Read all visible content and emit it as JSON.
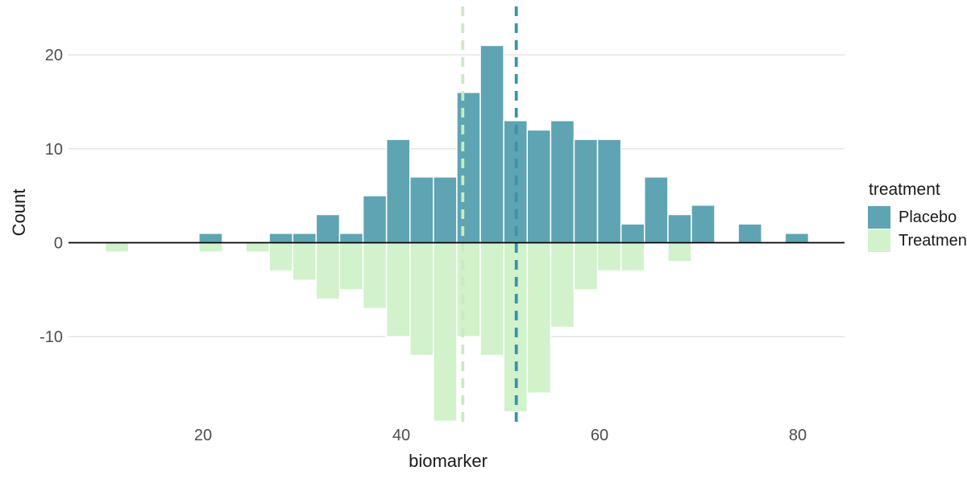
{
  "chart_data": {
    "type": "bar",
    "subtype": "mirrored-histogram",
    "title": "",
    "xlabel": "biomarker",
    "ylabel": "Count",
    "x": [
      11.3,
      13.6,
      16.0,
      18.4,
      20.8,
      23.1,
      25.5,
      27.9,
      30.2,
      32.6,
      35.0,
      37.3,
      39.7,
      42.1,
      44.4,
      46.8,
      49.2,
      51.5,
      53.9,
      56.3,
      58.6,
      61.0,
      63.4,
      65.7,
      68.1,
      70.5,
      72.8,
      75.2,
      77.6,
      79.9
    ],
    "binwidth": 2.37,
    "series": [
      {
        "name": "Placebo",
        "color": "#5FA4B2",
        "values": [
          0,
          0,
          0,
          0,
          1,
          0,
          0,
          1,
          1,
          3,
          1,
          5,
          11,
          7,
          7,
          16,
          21,
          13,
          12,
          13,
          11,
          11,
          2,
          7,
          3,
          4,
          0,
          2,
          0,
          1
        ]
      },
      {
        "name": "Treatment",
        "color": "#D1F2CB",
        "values": [
          -1,
          0,
          0,
          0,
          -1,
          0,
          -1,
          -3,
          -4,
          -6,
          -5,
          -7,
          -10,
          -12,
          -19,
          -10,
          -12,
          -18,
          -16,
          -9,
          -5,
          -3,
          -3,
          0,
          -2,
          0,
          0,
          0,
          0,
          0
        ]
      }
    ],
    "mean_lines": [
      {
        "series": "Treatment",
        "x": 46.2,
        "color": "#C6EDBF",
        "style": "dashed"
      },
      {
        "series": "Placebo",
        "x": 51.6,
        "color": "#3A93A9",
        "style": "dashed"
      }
    ],
    "x_ticks": [
      20,
      40,
      60,
      80
    ],
    "y_ticks": [
      20,
      10,
      0,
      -10
    ],
    "xlim": [
      6.5,
      84.8
    ],
    "ylim": [
      -20,
      25
    ],
    "grid": "horizontal-only",
    "bar_border_color": "#ffffff",
    "axis_line_color": "#000000",
    "tick_label_color": "#4d4d4d",
    "legend": {
      "title": "treatment",
      "position": "right",
      "items": [
        {
          "label": "Placebo",
          "color": "#5FA4B2"
        },
        {
          "label": "Treatment",
          "color": "#D1F2CB"
        }
      ]
    }
  }
}
